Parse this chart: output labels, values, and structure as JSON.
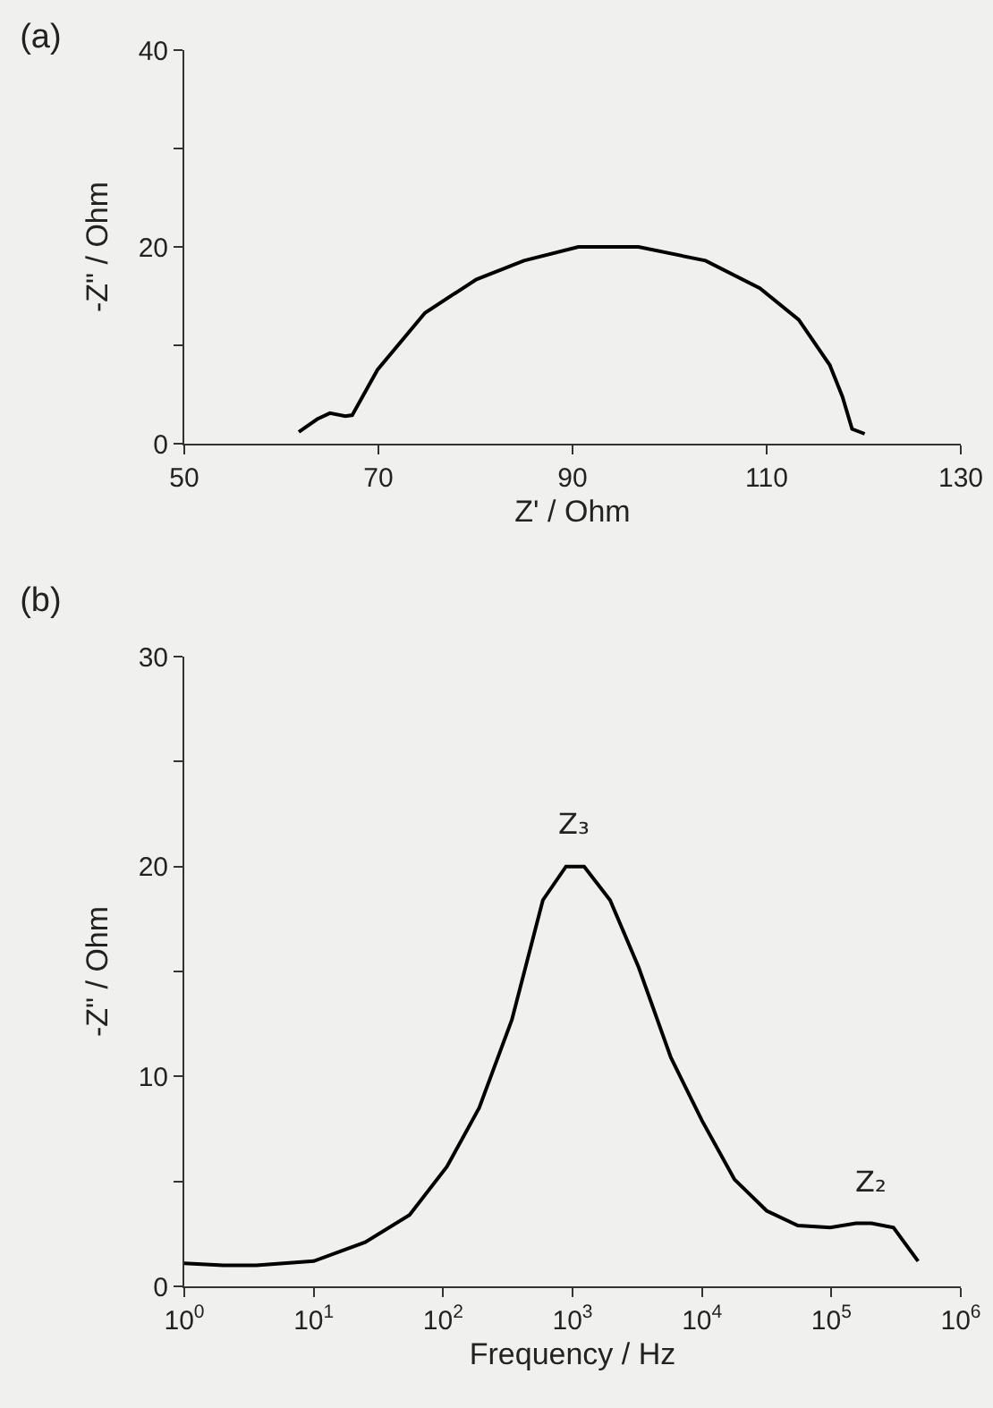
{
  "chart_data": [
    {
      "type": "line",
      "title": "(a)",
      "xlabel": "Z' / Ohm",
      "ylabel": "-Z\" / Ohm",
      "series": [
        {
          "color": "#000000",
          "x": [
            61.8,
            63.7,
            65,
            66.6,
            67.3,
            69.9,
            74.8,
            80.1,
            85,
            90.6,
            96.8,
            103.7,
            109.3,
            113.3,
            116.5,
            117.8,
            118.8,
            120.1
          ],
          "values": [
            1.2,
            2.5,
            3.1,
            2.8,
            2.9,
            7.5,
            13.3,
            16.7,
            18.6,
            20,
            20,
            18.6,
            15.8,
            12.6,
            8,
            4.8,
            1.5,
            1.0
          ]
        }
      ],
      "xlim": [
        50,
        130
      ],
      "xticks": [
        50,
        70,
        90,
        110,
        130
      ],
      "ylim": [
        0,
        40
      ],
      "yticks": [
        0,
        {
          "value": 10,
          "label": null
        },
        20,
        {
          "value": 30,
          "label": null
        },
        40
      ],
      "grid": false,
      "marker": "none",
      "line_style": "solid"
    },
    {
      "type": "line",
      "title": "(b)",
      "xlabel": "Frequency / Hz",
      "ylabel": "-Z\" / Ohm",
      "series": [
        {
          "color": "#000000",
          "x": [
            1,
            2.0,
            3.6,
            10,
            25,
            55,
            107,
            190,
            340,
            590,
            890,
            1230,
            1950,
            3240,
            5750,
            10000,
            17800,
            31600,
            55000,
            98000,
            155000,
            204000,
            302000,
            468000
          ],
          "values": [
            1.1,
            1.0,
            1.0,
            1.2,
            2.1,
            3.4,
            5.7,
            8.5,
            12.7,
            18.4,
            20.0,
            20.0,
            18.4,
            15.2,
            10.9,
            7.9,
            5.1,
            3.6,
            2.9,
            2.8,
            3.0,
            3.0,
            2.8,
            1.2
          ]
        }
      ],
      "log": "x",
      "xlim": [
        1,
        1000000
      ],
      "xticks": [
        {
          "value": 1,
          "label": "10$^{0}$"
        },
        {
          "value": 10,
          "label": "10$^{1}$"
        },
        {
          "value": 100,
          "label": "10$^{2}$"
        },
        {
          "value": 1000,
          "label": "10$^{3}$"
        },
        {
          "value": 10000,
          "label": "10$^{4}$"
        },
        {
          "value": 100000,
          "label": "10$^{5}$"
        },
        {
          "value": 1000000,
          "label": "10$^{6}$"
        }
      ],
      "ylim": [
        0,
        30
      ],
      "yticks": [
        0,
        {
          "value": 5,
          "label": null
        },
        10,
        {
          "value": 15,
          "label": null
        },
        20,
        {
          "value": 25,
          "label": null
        },
        30
      ],
      "annotations": [
        {
          "text": "Z₃",
          "x": 1000,
          "y": 20
        },
        {
          "text": "Z₂",
          "x": 200000,
          "y": 3
        }
      ],
      "grid": false,
      "marker": "none",
      "line_style": "solid"
    }
  ]
}
